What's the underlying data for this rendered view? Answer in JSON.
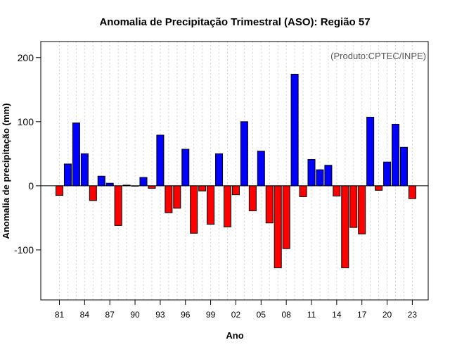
{
  "chart_data": {
    "type": "bar",
    "title": "Anomalia de Precipitação Trimestral (ASO): Região 57",
    "xlabel": "Ano",
    "ylabel": "Anomalia de precipitação (mm)",
    "credit": "(Produto:CPTEC/INPE)",
    "ylim": [
      -178,
      225
    ],
    "yticks": [
      -100,
      0,
      100,
      200
    ],
    "ytick_labels": [
      "-100",
      "0",
      "100",
      "200"
    ],
    "xtick_years": [
      1981,
      1984,
      1987,
      1990,
      1993,
      1996,
      1999,
      2002,
      2005,
      2008,
      2011,
      2014,
      2017,
      2020,
      2023
    ],
    "xtick_labels": [
      "81",
      "84",
      "87",
      "90",
      "93",
      "96",
      "99",
      "02",
      "05",
      "08",
      "11",
      "14",
      "17",
      "20",
      "23"
    ],
    "positive_color": "#0000ff",
    "negative_color": "#ff0000",
    "categories": [
      1981,
      1982,
      1983,
      1984,
      1985,
      1986,
      1987,
      1988,
      1989,
      1990,
      1991,
      1992,
      1993,
      1994,
      1995,
      1996,
      1997,
      1998,
      1999,
      2000,
      2001,
      2002,
      2003,
      2004,
      2005,
      2006,
      2007,
      2008,
      2009,
      2010,
      2011,
      2012,
      2013,
      2014,
      2015,
      2016,
      2017,
      2018,
      2019,
      2020,
      2021,
      2022,
      2023
    ],
    "values": [
      -15,
      34,
      98,
      50,
      -23,
      15,
      4,
      -62,
      1,
      0,
      13,
      -4,
      79,
      -42,
      -35,
      57,
      -74,
      -8,
      -60,
      50,
      -64,
      -14,
      100,
      -39,
      54,
      -58,
      -128,
      -98,
      174,
      -17,
      41,
      25,
      32,
      -16,
      -128,
      -65,
      -75,
      107,
      -7,
      37,
      96,
      60,
      -20
    ]
  }
}
